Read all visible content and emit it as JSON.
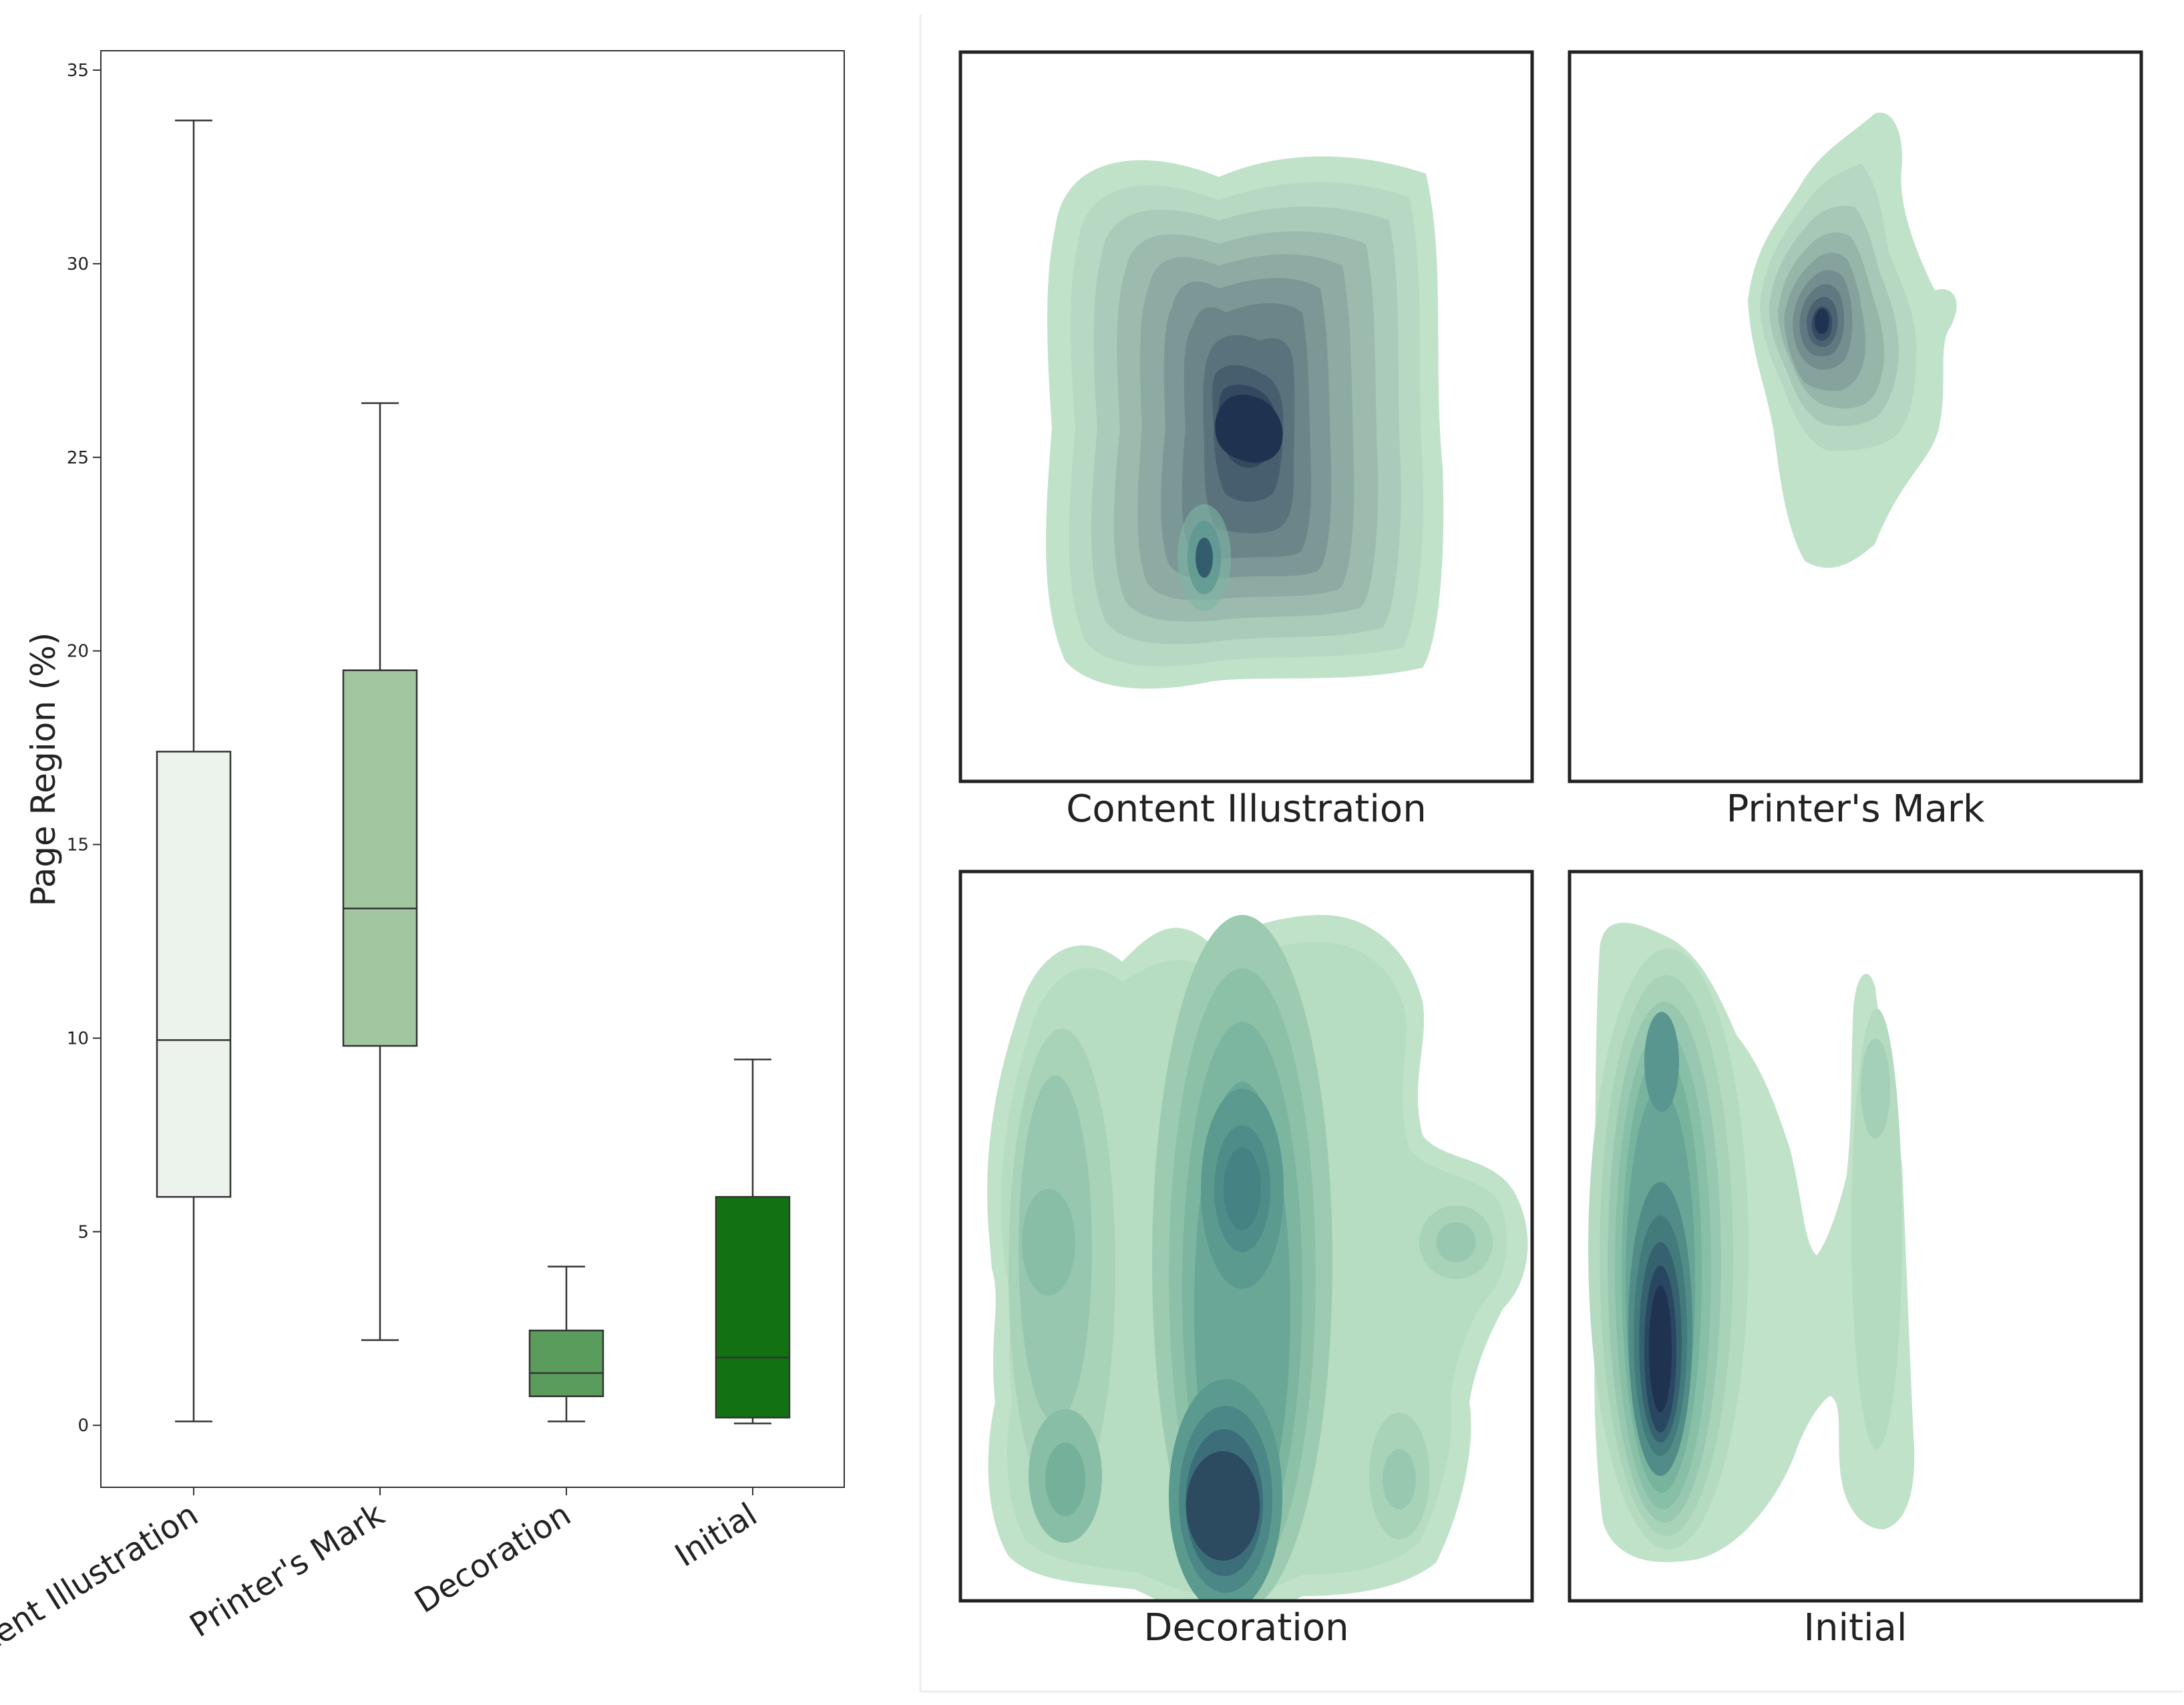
{
  "chart_data": [
    {
      "type": "box",
      "title": "",
      "xlabel": "",
      "ylabel": "Page Region (%)",
      "ylim": [
        -1.6,
        35.5
      ],
      "yticks": [
        0,
        5,
        10,
        15,
        20,
        25,
        30,
        35
      ],
      "categories": [
        "Content Illustration",
        "Printer's Mark",
        "Decoration",
        "Initial"
      ],
      "boxes": [
        {
          "name": "Content Illustration",
          "whisker_low": 0.1,
          "q1": 5.9,
          "median": 9.95,
          "q3": 17.4,
          "whisker_high": 33.7,
          "color": "#ebf3ec"
        },
        {
          "name": "Printer's Mark",
          "whisker_low": 2.2,
          "q1": 9.8,
          "median": 13.35,
          "q3": 19.5,
          "whisker_high": 26.4,
          "color": "#a2c7a0"
        },
        {
          "name": "Decoration",
          "whisker_low": 0.1,
          "q1": 0.75,
          "median": 1.35,
          "q3": 2.45,
          "whisker_high": 4.1,
          "color": "#5a9c5b"
        },
        {
          "name": "Initial",
          "whisker_low": 0.05,
          "q1": 0.2,
          "median": 1.75,
          "q3": 5.9,
          "whisker_high": 9.45,
          "color": "#127212"
        }
      ]
    },
    {
      "type": "kde_density",
      "panels": [
        {
          "label": "Content Illustration"
        },
        {
          "label": "Printer's Mark"
        },
        {
          "label": "Decoration"
        },
        {
          "label": "Initial"
        }
      ],
      "colors": {
        "light": "#c0e2c9",
        "dark": "#1f3350"
      }
    }
  ]
}
